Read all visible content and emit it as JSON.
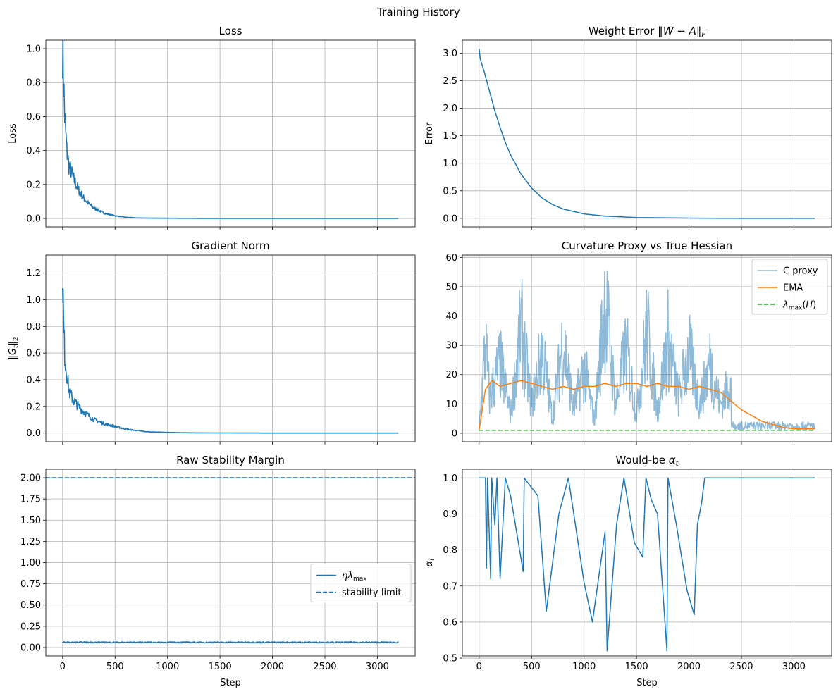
{
  "figure": {
    "suptitle": "Training History"
  },
  "colors": {
    "blue": "#1f77b4",
    "orange": "#ff7f0e",
    "green": "#2ca02c",
    "grid": "#b0b0b0"
  },
  "chart_data": [
    {
      "id": "loss",
      "type": "line",
      "title": "Loss",
      "xlabel": "",
      "ylabel": "Loss",
      "xlim": [
        -160,
        3360
      ],
      "ylim": [
        -0.05,
        1.05
      ],
      "xticks": [
        0,
        500,
        1000,
        1500,
        2000,
        2500,
        3000
      ],
      "xtick_labels": [],
      "yticks": [
        0.0,
        0.2,
        0.4,
        0.6,
        0.8,
        1.0
      ],
      "ytick_labels": [
        "0.0",
        "0.2",
        "0.4",
        "0.6",
        "0.8",
        "1.0"
      ],
      "grid": true,
      "legend": null,
      "series": [
        {
          "style": "solid",
          "color": "#1f77b4",
          "x": [
            0,
            10,
            20,
            30,
            40,
            60,
            80,
            100,
            150,
            200,
            250,
            300,
            400,
            500,
            600,
            700,
            800,
            1000,
            1500,
            2000,
            2500,
            3000,
            3200
          ],
          "y": [
            1.0,
            0.8,
            0.6,
            0.5,
            0.4,
            0.31,
            0.28,
            0.24,
            0.17,
            0.12,
            0.085,
            0.06,
            0.03,
            0.015,
            0.007,
            0.003,
            0.002,
            0.001,
            0.0,
            0.0,
            0.0,
            0.0,
            0.0
          ]
        }
      ]
    },
    {
      "id": "weight-error",
      "type": "line",
      "title": "Weight Error ‖W − A‖F",
      "xlabel": "",
      "ylabel": "Error",
      "xlim": [
        -160,
        3360
      ],
      "ylim": [
        -0.155,
        3.235
      ],
      "xticks": [
        0,
        500,
        1000,
        1500,
        2000,
        2500,
        3000
      ],
      "xtick_labels": [],
      "yticks": [
        0.0,
        0.5,
        1.0,
        1.5,
        2.0,
        2.5,
        3.0
      ],
      "ytick_labels": [
        "0.0",
        "0.5",
        "1.0",
        "1.5",
        "2.0",
        "2.5",
        "3.0"
      ],
      "grid": true,
      "legend": null,
      "series": [
        {
          "style": "solid",
          "color": "#1f77b4",
          "x": [
            0,
            10,
            50,
            100,
            150,
            200,
            250,
            300,
            400,
            500,
            600,
            700,
            800,
            1000,
            1200,
            1500,
            2000,
            2500,
            3000,
            3200
          ],
          "y": [
            3.08,
            2.9,
            2.65,
            2.3,
            1.95,
            1.65,
            1.38,
            1.15,
            0.8,
            0.55,
            0.37,
            0.25,
            0.17,
            0.08,
            0.04,
            0.015,
            0.005,
            0.0,
            0.0,
            0.0
          ]
        }
      ]
    },
    {
      "id": "gradient-norm",
      "type": "line",
      "title": "Gradient Norm",
      "xlabel": "",
      "ylabel": "‖Gt‖2",
      "xlim": [
        -160,
        3360
      ],
      "ylim": [
        -0.065,
        1.335
      ],
      "xticks": [
        0,
        500,
        1000,
        1500,
        2000,
        2500,
        3000
      ],
      "xtick_labels": [],
      "yticks": [
        0.0,
        0.2,
        0.4,
        0.6,
        0.8,
        1.0,
        1.2
      ],
      "ytick_labels": [
        "0.0",
        "0.2",
        "0.4",
        "0.6",
        "0.8",
        "1.0",
        "1.2"
      ],
      "grid": true,
      "legend": null,
      "series": [
        {
          "style": "solid",
          "color": "#1f77b4",
          "x": [
            0,
            5,
            10,
            20,
            30,
            40,
            60,
            80,
            100,
            150,
            200,
            250,
            300,
            400,
            500,
            600,
            700,
            800,
            1000,
            1200,
            1500,
            2000,
            2500,
            3000,
            3200
          ],
          "y": [
            1.27,
            1.0,
            0.8,
            0.6,
            0.5,
            0.45,
            0.32,
            0.28,
            0.25,
            0.2,
            0.16,
            0.13,
            0.1,
            0.07,
            0.05,
            0.03,
            0.02,
            0.01,
            0.005,
            0.002,
            0.001,
            0.0,
            0.0,
            0.0,
            0.0
          ]
        }
      ]
    },
    {
      "id": "curvature",
      "type": "line",
      "title": "Curvature Proxy vs True Hessian",
      "xlabel": "",
      "ylabel": "",
      "xlim": [
        -160,
        3360
      ],
      "ylim": [
        -2.9,
        60.8
      ],
      "xticks": [
        0,
        500,
        1000,
        1500,
        2000,
        2500,
        3000
      ],
      "xtick_labels": [],
      "yticks": [
        0,
        10,
        20,
        30,
        40,
        50,
        60
      ],
      "ytick_labels": [
        "0",
        "10",
        "20",
        "30",
        "40",
        "50",
        "60"
      ],
      "grid": true,
      "legend": {
        "position": "upper right",
        "entries": [
          "C proxy",
          "EMA",
          "λmax(H)"
        ]
      },
      "series": [
        {
          "name": "C proxy",
          "style": "solid",
          "color": "#1f77b4",
          "alpha": 0.5,
          "x": [
            0,
            30,
            60,
            100,
            200,
            300,
            400,
            500,
            600,
            700,
            800,
            900,
            1000,
            1100,
            1200,
            1300,
            1400,
            1500,
            1600,
            1700,
            1800,
            1900,
            2000,
            2100,
            2200,
            2300,
            2400,
            2500,
            2600,
            2700,
            2800,
            2900,
            3000,
            3100,
            3200
          ],
          "y": [
            2,
            20,
            38,
            15,
            30,
            8,
            45,
            12,
            35,
            6,
            40,
            10,
            28,
            5,
            58,
            12,
            36,
            8,
            44,
            9,
            40,
            15,
            35,
            12,
            30,
            12,
            22,
            10,
            8,
            6,
            4,
            3,
            2,
            2,
            1.5
          ]
        },
        {
          "name": "EMA",
          "style": "solid",
          "color": "#ff7f0e",
          "x": [
            0,
            60,
            120,
            200,
            300,
            400,
            500,
            600,
            700,
            800,
            900,
            1000,
            1100,
            1200,
            1300,
            1400,
            1500,
            1600,
            1700,
            1800,
            1900,
            2000,
            2100,
            2200,
            2300,
            2400,
            2500,
            2600,
            2700,
            2800,
            2900,
            3000,
            3100,
            3200
          ],
          "y": [
            1,
            15,
            18,
            16,
            17,
            18,
            17,
            16,
            15,
            16,
            15,
            16,
            16,
            17,
            16,
            17,
            17,
            16,
            17,
            16,
            16,
            15,
            16,
            15,
            14,
            11,
            8,
            6,
            4,
            3,
            2,
            1.5,
            1.5,
            1.5
          ]
        },
        {
          "name": "λmax(H)",
          "style": "dashed",
          "color": "#2ca02c",
          "x": [
            0,
            500,
            1000,
            1500,
            2000,
            2500,
            3000,
            3200
          ],
          "y": [
            1,
            1,
            1,
            1,
            1,
            1,
            1,
            1
          ]
        }
      ]
    },
    {
      "id": "stability",
      "type": "line",
      "title": "Raw Stability Margin",
      "xlabel": "Step",
      "ylabel": "",
      "xlim": [
        -160,
        3360
      ],
      "ylim": [
        -0.1,
        2.1
      ],
      "xticks": [
        0,
        500,
        1000,
        1500,
        2000,
        2500,
        3000
      ],
      "xtick_labels": [
        "0",
        "500",
        "1000",
        "1500",
        "2000",
        "2500",
        "3000"
      ],
      "yticks": [
        0.0,
        0.25,
        0.5,
        0.75,
        1.0,
        1.25,
        1.5,
        1.75,
        2.0
      ],
      "ytick_labels": [
        "0.00",
        "0.25",
        "0.50",
        "0.75",
        "1.00",
        "1.25",
        "1.50",
        "1.75",
        "2.00"
      ],
      "grid": true,
      "legend": {
        "position": "center right",
        "entries": [
          "ηλmax",
          "stability limit"
        ]
      },
      "series": [
        {
          "name": "ηλmax",
          "style": "solid",
          "color": "#1f77b4",
          "x": [
            0,
            500,
            1000,
            1500,
            2000,
            2500,
            3000,
            3200
          ],
          "y": [
            0.06,
            0.06,
            0.06,
            0.06,
            0.06,
            0.06,
            0.06,
            0.06
          ]
        },
        {
          "name": "stability limit",
          "style": "dashed",
          "color": "#1f77b4",
          "hline": 2.0
        }
      ]
    },
    {
      "id": "alpha",
      "type": "line",
      "title": "Would-be αt",
      "xlabel": "Step",
      "ylabel": "αt",
      "xlim": [
        -160,
        3360
      ],
      "ylim": [
        0.506,
        1.024
      ],
      "xticks": [
        0,
        500,
        1000,
        1500,
        2000,
        2500,
        3000
      ],
      "xtick_labels": [
        "0",
        "500",
        "1000",
        "1500",
        "2000",
        "2500",
        "3000"
      ],
      "yticks": [
        0.5,
        0.6,
        0.7,
        0.8,
        0.9,
        1.0
      ],
      "ytick_labels": [
        "0.5",
        "0.6",
        "0.7",
        "0.8",
        "0.9",
        "1.0"
      ],
      "grid": true,
      "legend": null,
      "series": [
        {
          "style": "solid",
          "color": "#1f77b4",
          "x": [
            0,
            60,
            70,
            80,
            110,
            120,
            150,
            170,
            200,
            250,
            300,
            420,
            430,
            560,
            640,
            760,
            850,
            1000,
            1080,
            1200,
            1220,
            1310,
            1380,
            1480,
            1560,
            1590,
            1640,
            1700,
            1790,
            1800,
            1880,
            1980,
            2050,
            2080,
            2120,
            2150,
            2200,
            2500,
            3000,
            3200
          ],
          "y": [
            1.0,
            1.0,
            0.75,
            1.0,
            0.72,
            1.0,
            0.87,
            1.0,
            0.72,
            1.0,
            0.95,
            0.74,
            1.0,
            0.95,
            0.63,
            0.9,
            1.0,
            0.71,
            0.6,
            0.85,
            0.52,
            0.87,
            1.0,
            0.82,
            0.78,
            1.0,
            0.94,
            0.9,
            0.52,
            1.0,
            0.87,
            0.69,
            0.62,
            0.87,
            0.93,
            1.0,
            1.0,
            1.0,
            1.0,
            1.0
          ]
        }
      ]
    }
  ]
}
